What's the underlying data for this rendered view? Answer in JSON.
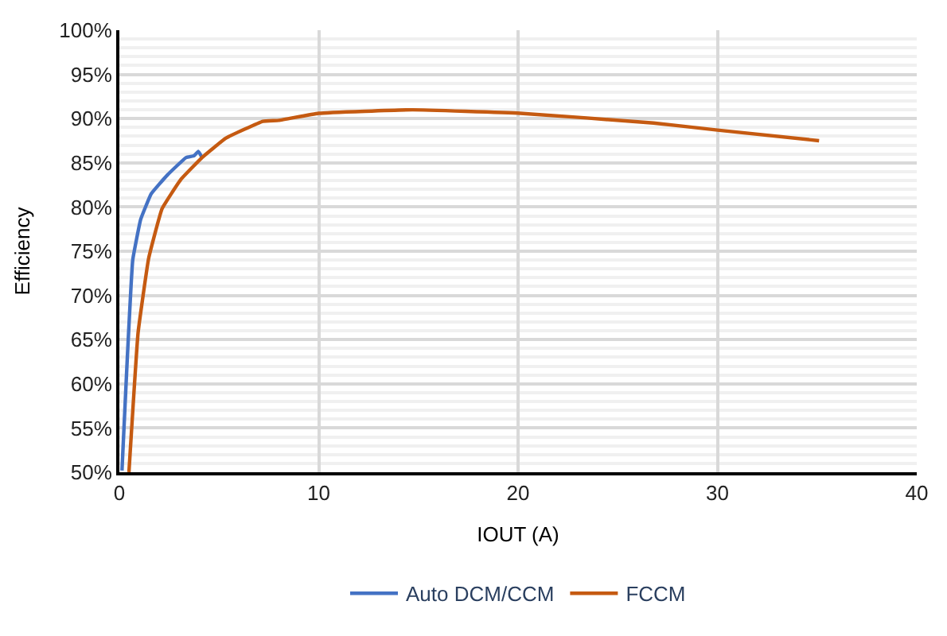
{
  "chart_data": {
    "type": "line",
    "xlabel": "IOUT (A)",
    "ylabel": "Efficiency",
    "xlim": [
      0,
      40
    ],
    "xticks": [
      0,
      10,
      20,
      30,
      40
    ],
    "ylim": [
      50,
      100
    ],
    "yticks": [
      {
        "value": 50,
        "label": "50%"
      },
      {
        "value": 55,
        "label": "55%"
      },
      {
        "value": 60,
        "label": "60%"
      },
      {
        "value": 65,
        "label": "65%"
      },
      {
        "value": 70,
        "label": "70%"
      },
      {
        "value": 75,
        "label": "75%"
      },
      {
        "value": 80,
        "label": "80%"
      },
      {
        "value": 85,
        "label": "85%"
      },
      {
        "value": 90,
        "label": "90%"
      },
      {
        "value": 95,
        "label": "95%"
      },
      {
        "value": 100,
        "label": "100%"
      }
    ],
    "grid": true,
    "legend": "bottom",
    "marker": "none",
    "line_style": "solid",
    "series": [
      {
        "name": "Auto DCM/CCM",
        "color": "#4472c4",
        "x": [
          0.13,
          0.4,
          0.67,
          1.07,
          1.6,
          2.4,
          3.35,
          3.75,
          3.96,
          4.15
        ],
        "values": [
          50.2,
          63,
          74,
          78.6,
          81.5,
          83.6,
          85.6,
          85.8,
          86.3,
          85.6
        ]
      },
      {
        "name": "FCCM",
        "color": "#c55a11",
        "x": [
          0.48,
          0.94,
          1.47,
          2.14,
          3.08,
          4.15,
          5.35,
          7.2,
          8.0,
          10.0,
          14.7,
          20.1,
          26.8,
          30,
          35.1
        ],
        "values": [
          50.0,
          65.8,
          74.2,
          79.8,
          83.1,
          85.6,
          87.8,
          89.7,
          89.8,
          90.6,
          91.0,
          90.6,
          89.5,
          88.7,
          87.5
        ]
      }
    ]
  }
}
